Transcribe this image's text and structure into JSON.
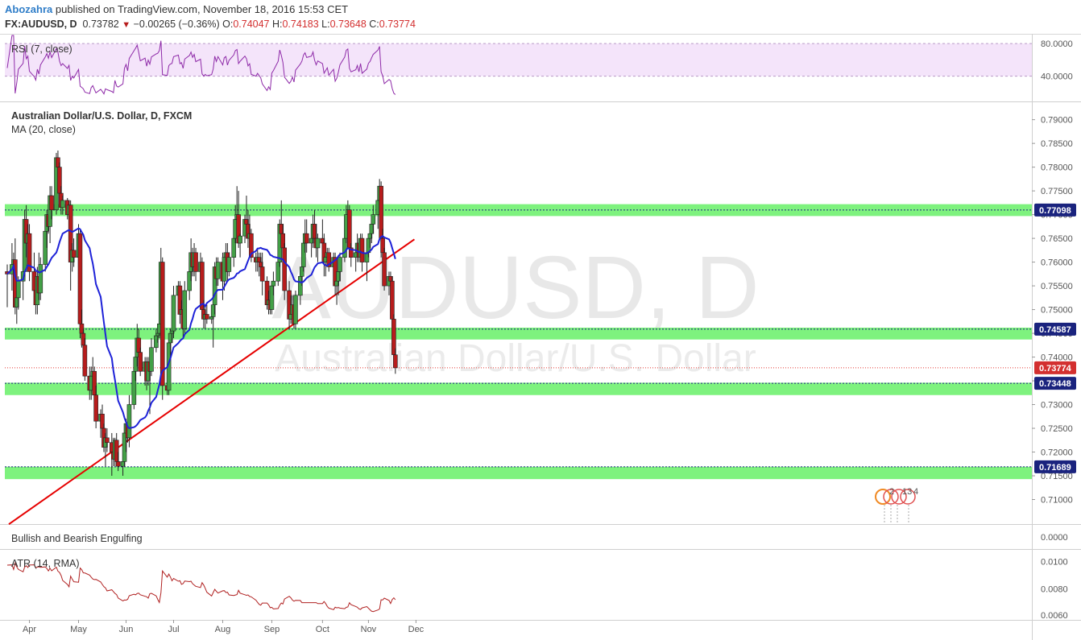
{
  "header": {
    "author": "Abozahra",
    "published": "published on TradingView.com, November 18, 2016 15:53 CET",
    "symbol": "FX:AUDUSD, D",
    "last": "0.73782",
    "change": "−0.00265 (−0.36%)",
    "o_label": "O:",
    "o_value": "0.74047",
    "h_label": "H:",
    "h_value": "0.74183",
    "l_label": "L:",
    "l_value": "0.73648",
    "c_label": "C:",
    "c_value": "0.73774"
  },
  "watermark": {
    "big": "AUDUSD, D",
    "small": "Australian Dollar/U.S. Dollar"
  },
  "panes": {
    "rsi_label": "RSI (7, close)",
    "main_title": "Australian Dollar/U.S. Dollar, D, FXCM",
    "ma_label": "MA (20, close)",
    "engulf_label": "Bullish and Bearish Engulfing",
    "atr_label": "ATR (14, RMA)"
  },
  "colors": {
    "bull": "#43a047",
    "bear": "#b71c1c",
    "ma": "#1e22d8",
    "trendline": "#e60000",
    "zone": "#7ef27e",
    "rsi_band": "#f4e4fa",
    "rsi_line": "#8e2aa8",
    "atr_line": "#b02020",
    "price_tag": "#1a237e",
    "current_tag": "#d32f2f"
  },
  "icons": [
    "calendar-event-icon"
  ],
  "event_markers": [
    "2",
    "13",
    "4"
  ],
  "chart_data": {
    "type": "candlestick",
    "title": "Australian Dollar/U.S. Dollar, D, FXCM",
    "x_tick_labels": [
      "Apr",
      "May",
      "Jun",
      "Jul",
      "Aug",
      "Sep",
      "Oct",
      "Nov",
      "Dec"
    ],
    "y_tick_labels": [
      "0.79000",
      "0.78500",
      "0.78000",
      "0.77500",
      "0.77000",
      "0.76500",
      "0.76000",
      "0.75500",
      "0.75000",
      "0.74500",
      "0.74000",
      "0.73500",
      "0.73000",
      "0.72500",
      "0.72000",
      "0.71500",
      "0.71000"
    ],
    "y_range": [
      0.705,
      0.7935
    ],
    "price_levels": [
      "0.77098",
      "0.74587",
      "0.73448",
      "0.71689"
    ],
    "current_price": "0.73774",
    "support_resistance_zones": [
      [
        0.7697,
        0.7722
      ],
      [
        0.7437,
        0.7462
      ],
      [
        0.732,
        0.7346
      ],
      [
        0.7143,
        0.7169
      ]
    ],
    "trendline": {
      "from": [
        "2016-03-19",
        0.7048
      ],
      "to": [
        "2016-11-30",
        0.7648
      ]
    },
    "candles_ohlc": [
      [
        "2016-03-18",
        0.758,
        0.7595,
        0.7505,
        0.7575
      ],
      [
        "2016-03-21",
        0.7575,
        0.764,
        0.754,
        0.7595
      ],
      [
        "2016-03-22",
        0.7595,
        0.762,
        0.757,
        0.7605
      ],
      [
        "2016-03-23",
        0.7605,
        0.765,
        0.749,
        0.7505
      ],
      [
        "2016-03-24",
        0.7505,
        0.753,
        0.747,
        0.7525
      ],
      [
        "2016-03-25",
        0.7525,
        0.757,
        0.75,
        0.756
      ],
      [
        "2016-03-28",
        0.756,
        0.759,
        0.752,
        0.758
      ],
      [
        "2016-03-29",
        0.758,
        0.771,
        0.757,
        0.769
      ],
      [
        "2016-03-30",
        0.769,
        0.772,
        0.761,
        0.764
      ],
      [
        "2016-03-31",
        0.764,
        0.768,
        0.76,
        0.766
      ],
      [
        "2016-04-01",
        0.766,
        0.768,
        0.756,
        0.758
      ],
      [
        "2016-04-04",
        0.758,
        0.762,
        0.752,
        0.754
      ],
      [
        "2016-04-05",
        0.754,
        0.756,
        0.749,
        0.751
      ],
      [
        "2016-04-06",
        0.751,
        0.759,
        0.749,
        0.757
      ],
      [
        "2016-04-07",
        0.757,
        0.762,
        0.752,
        0.7535
      ],
      [
        "2016-04-08",
        0.7535,
        0.761,
        0.752,
        0.7595
      ],
      [
        "2016-04-11",
        0.7595,
        0.768,
        0.758,
        0.7665
      ],
      [
        "2016-04-12",
        0.7665,
        0.771,
        0.763,
        0.77
      ],
      [
        "2016-04-13",
        0.77,
        0.773,
        0.766,
        0.7675
      ],
      [
        "2016-04-14",
        0.7675,
        0.776,
        0.764,
        0.774
      ],
      [
        "2016-04-15",
        0.774,
        0.776,
        0.769,
        0.771
      ],
      [
        "2016-04-18",
        0.771,
        0.783,
        0.77,
        0.782
      ],
      [
        "2016-04-19",
        0.782,
        0.7835,
        0.778,
        0.78
      ],
      [
        "2016-04-20",
        0.78,
        0.781,
        0.773,
        0.7745
      ],
      [
        "2016-04-21",
        0.7745,
        0.776,
        0.77,
        0.7715
      ],
      [
        "2016-04-22",
        0.7715,
        0.774,
        0.77,
        0.773
      ],
      [
        "2016-04-25",
        0.773,
        0.7735,
        0.769,
        0.77
      ],
      [
        "2016-04-26",
        0.77,
        0.773,
        0.767,
        0.772
      ],
      [
        "2016-04-27",
        0.772,
        0.773,
        0.754,
        0.76
      ],
      [
        "2016-04-28",
        0.76,
        0.764,
        0.758,
        0.7625
      ],
      [
        "2016-04-29",
        0.7625,
        0.765,
        0.759,
        0.761
      ],
      [
        "2016-05-02",
        0.761,
        0.768,
        0.76,
        0.766
      ],
      [
        "2016-05-03",
        0.766,
        0.767,
        0.744,
        0.747
      ],
      [
        "2016-05-04",
        0.747,
        0.75,
        0.742,
        0.745
      ],
      [
        "2016-05-05",
        0.745,
        0.746,
        0.74,
        0.7425
      ],
      [
        "2016-05-06",
        0.7425,
        0.744,
        0.735,
        0.736
      ],
      [
        "2016-05-09",
        0.736,
        0.738,
        0.731,
        0.733
      ],
      [
        "2016-05-10",
        0.733,
        0.738,
        0.731,
        0.736
      ],
      [
        "2016-05-11",
        0.736,
        0.74,
        0.733,
        0.737
      ],
      [
        "2016-05-12",
        0.737,
        0.738,
        0.73,
        0.732
      ],
      [
        "2016-05-13",
        0.732,
        0.734,
        0.725,
        0.7265
      ],
      [
        "2016-05-16",
        0.7265,
        0.729,
        0.723,
        0.728
      ],
      [
        "2016-05-17",
        0.728,
        0.73,
        0.724,
        0.725
      ],
      [
        "2016-05-18",
        0.725,
        0.726,
        0.72,
        0.721
      ],
      [
        "2016-05-19",
        0.721,
        0.724,
        0.717,
        0.723
      ],
      [
        "2016-05-20",
        0.723,
        0.725,
        0.72,
        0.722
      ],
      [
        "2016-05-23",
        0.722,
        0.724,
        0.715,
        0.72
      ],
      [
        "2016-05-24",
        0.72,
        0.723,
        0.717,
        0.7185
      ],
      [
        "2016-05-25",
        0.7185,
        0.723,
        0.717,
        0.7225
      ],
      [
        "2016-05-26",
        0.7225,
        0.724,
        0.7175,
        0.718
      ],
      [
        "2016-05-27",
        0.718,
        0.72,
        0.716,
        0.717
      ],
      [
        "2016-05-30",
        0.717,
        0.7195,
        0.715,
        0.718
      ],
      [
        "2016-05-31",
        0.718,
        0.725,
        0.717,
        0.724
      ],
      [
        "2016-06-01",
        0.724,
        0.727,
        0.72,
        0.726
      ],
      [
        "2016-06-02",
        0.726,
        0.73,
        0.722,
        0.723
      ],
      [
        "2016-06-03",
        0.723,
        0.732,
        0.721,
        0.73
      ],
      [
        "2016-06-06",
        0.73,
        0.738,
        0.729,
        0.737
      ],
      [
        "2016-06-07",
        0.737,
        0.742,
        0.735,
        0.74
      ],
      [
        "2016-06-08",
        0.74,
        0.747,
        0.738,
        0.744
      ],
      [
        "2016-06-09",
        0.744,
        0.746,
        0.738,
        0.741
      ],
      [
        "2016-06-10",
        0.741,
        0.742,
        0.736,
        0.737
      ],
      [
        "2016-06-13",
        0.737,
        0.74,
        0.734,
        0.739
      ],
      [
        "2016-06-14",
        0.739,
        0.74,
        0.733,
        0.735
      ],
      [
        "2016-06-15",
        0.735,
        0.74,
        0.734,
        0.739
      ],
      [
        "2016-06-16",
        0.739,
        0.74,
        0.728,
        0.737
      ],
      [
        "2016-06-17",
        0.737,
        0.744,
        0.736,
        0.742
      ],
      [
        "2016-06-20",
        0.742,
        0.746,
        0.741,
        0.7445
      ],
      [
        "2016-06-21",
        0.7445,
        0.747,
        0.743,
        0.745
      ],
      [
        "2016-06-22",
        0.745,
        0.748,
        0.744,
        0.747
      ],
      [
        "2016-06-23",
        0.747,
        0.763,
        0.746,
        0.76
      ],
      [
        "2016-06-24",
        0.76,
        0.761,
        0.731,
        0.734
      ],
      [
        "2016-06-27",
        0.734,
        0.735,
        0.732,
        0.733
      ],
      [
        "2016-06-28",
        0.733,
        0.744,
        0.732,
        0.743
      ],
      [
        "2016-06-29",
        0.743,
        0.746,
        0.74,
        0.745
      ],
      [
        "2016-06-30",
        0.745,
        0.748,
        0.743,
        0.7455
      ],
      [
        "2016-07-01",
        0.7455,
        0.755,
        0.744,
        0.753
      ],
      [
        "2016-07-04",
        0.753,
        0.756,
        0.75,
        0.755
      ],
      [
        "2016-07-05",
        0.755,
        0.756,
        0.747,
        0.749
      ],
      [
        "2016-07-06",
        0.749,
        0.752,
        0.747,
        0.75
      ],
      [
        "2016-07-07",
        0.75,
        0.753,
        0.744,
        0.746
      ],
      [
        "2016-07-08",
        0.746,
        0.756,
        0.745,
        0.754
      ],
      [
        "2016-07-11",
        0.754,
        0.76,
        0.752,
        0.758
      ],
      [
        "2016-07-12",
        0.758,
        0.765,
        0.756,
        0.762
      ],
      [
        "2016-07-13",
        0.762,
        0.763,
        0.757,
        0.759
      ],
      [
        "2016-07-14",
        0.759,
        0.764,
        0.757,
        0.762
      ],
      [
        "2016-07-15",
        0.762,
        0.763,
        0.756,
        0.758
      ],
      [
        "2016-07-18",
        0.758,
        0.762,
        0.755,
        0.76
      ],
      [
        "2016-07-19",
        0.76,
        0.761,
        0.748,
        0.75
      ],
      [
        "2016-07-20",
        0.75,
        0.752,
        0.746,
        0.748
      ],
      [
        "2016-07-21",
        0.748,
        0.751,
        0.746,
        0.749
      ],
      [
        "2016-07-22",
        0.749,
        0.751,
        0.747,
        0.748
      ],
      [
        "2016-07-25",
        0.748,
        0.751,
        0.747,
        0.7485
      ],
      [
        "2016-07-26",
        0.7485,
        0.753,
        0.742,
        0.751
      ],
      [
        "2016-07-27",
        0.751,
        0.76,
        0.749,
        0.759
      ],
      [
        "2016-07-28",
        0.759,
        0.761,
        0.755,
        0.7565
      ],
      [
        "2016-07-29",
        0.7565,
        0.761,
        0.755,
        0.76
      ],
      [
        "2016-08-01",
        0.76,
        0.762,
        0.752,
        0.756
      ],
      [
        "2016-08-02",
        0.756,
        0.762,
        0.754,
        0.761
      ],
      [
        "2016-08-03",
        0.761,
        0.764,
        0.758,
        0.762
      ],
      [
        "2016-08-04",
        0.762,
        0.764,
        0.756,
        0.758
      ],
      [
        "2016-08-05",
        0.758,
        0.762,
        0.757,
        0.761
      ],
      [
        "2016-08-08",
        0.761,
        0.766,
        0.759,
        0.765
      ],
      [
        "2016-08-09",
        0.765,
        0.772,
        0.764,
        0.769
      ],
      [
        "2016-08-10",
        0.769,
        0.776,
        0.768,
        0.77
      ],
      [
        "2016-08-11",
        0.77,
        0.775,
        0.763,
        0.764
      ],
      [
        "2016-08-12",
        0.764,
        0.766,
        0.761,
        0.7655
      ],
      [
        "2016-08-15",
        0.7655,
        0.77,
        0.764,
        0.769
      ],
      [
        "2016-08-16",
        0.769,
        0.774,
        0.767,
        0.768
      ],
      [
        "2016-08-17",
        0.768,
        0.771,
        0.763,
        0.765
      ],
      [
        "2016-08-18",
        0.765,
        0.77,
        0.764,
        0.766
      ],
      [
        "2016-08-19",
        0.766,
        0.767,
        0.76,
        0.761
      ],
      [
        "2016-08-22",
        0.761,
        0.762,
        0.758,
        0.76
      ],
      [
        "2016-08-23",
        0.76,
        0.763,
        0.758,
        0.761
      ],
      [
        "2016-08-24",
        0.761,
        0.762,
        0.757,
        0.76
      ],
      [
        "2016-08-25",
        0.76,
        0.762,
        0.756,
        0.759
      ],
      [
        "2016-08-26",
        0.759,
        0.762,
        0.753,
        0.756
      ],
      [
        "2016-08-29",
        0.756,
        0.757,
        0.75,
        0.751
      ],
      [
        "2016-08-30",
        0.751,
        0.754,
        0.749,
        0.752
      ],
      [
        "2016-08-31",
        0.752,
        0.753,
        0.749,
        0.75
      ],
      [
        "2016-09-01",
        0.75,
        0.756,
        0.749,
        0.755
      ],
      [
        "2016-09-02",
        0.755,
        0.758,
        0.753,
        0.756
      ],
      [
        "2016-09-05",
        0.756,
        0.762,
        0.755,
        0.76
      ],
      [
        "2016-09-06",
        0.76,
        0.769,
        0.759,
        0.768
      ],
      [
        "2016-09-07",
        0.768,
        0.773,
        0.764,
        0.766
      ],
      [
        "2016-09-08",
        0.766,
        0.768,
        0.762,
        0.763
      ],
      [
        "2016-09-09",
        0.763,
        0.764,
        0.752,
        0.754
      ],
      [
        "2016-09-12",
        0.754,
        0.756,
        0.746,
        0.748
      ],
      [
        "2016-09-13",
        0.748,
        0.753,
        0.747,
        0.749
      ],
      [
        "2016-09-14",
        0.749,
        0.753,
        0.748,
        0.751
      ],
      [
        "2016-09-15",
        0.751,
        0.752,
        0.746,
        0.747
      ],
      [
        "2016-09-16",
        0.747,
        0.754,
        0.746,
        0.753
      ],
      [
        "2016-09-19",
        0.753,
        0.758,
        0.751,
        0.757
      ],
      [
        "2016-09-20",
        0.757,
        0.76,
        0.755,
        0.759
      ],
      [
        "2016-09-21",
        0.759,
        0.765,
        0.758,
        0.764
      ],
      [
        "2016-09-22",
        0.764,
        0.769,
        0.762,
        0.766
      ],
      [
        "2016-09-23",
        0.766,
        0.769,
        0.762,
        0.764
      ],
      [
        "2016-09-26",
        0.764,
        0.768,
        0.761,
        0.765
      ],
      [
        "2016-09-27",
        0.765,
        0.77,
        0.763,
        0.768
      ],
      [
        "2016-09-28",
        0.768,
        0.771,
        0.764,
        0.765
      ],
      [
        "2016-09-29",
        0.765,
        0.768,
        0.761,
        0.763
      ],
      [
        "2016-09-30",
        0.763,
        0.766,
        0.76,
        0.765
      ],
      [
        "2016-10-03",
        0.765,
        0.769,
        0.762,
        0.764
      ],
      [
        "2016-10-04",
        0.764,
        0.766,
        0.757,
        0.76
      ],
      [
        "2016-10-05",
        0.76,
        0.762,
        0.757,
        0.761
      ],
      [
        "2016-10-06",
        0.761,
        0.763,
        0.759,
        0.762
      ],
      [
        "2016-10-07",
        0.762,
        0.763,
        0.758,
        0.759
      ],
      [
        "2016-10-10",
        0.759,
        0.762,
        0.757,
        0.761
      ],
      [
        "2016-10-11",
        0.761,
        0.762,
        0.753,
        0.755
      ],
      [
        "2016-10-12",
        0.755,
        0.757,
        0.751,
        0.756
      ],
      [
        "2016-10-13",
        0.756,
        0.76,
        0.753,
        0.758
      ],
      [
        "2016-10-14",
        0.758,
        0.762,
        0.756,
        0.761
      ],
      [
        "2016-10-17",
        0.761,
        0.766,
        0.76,
        0.765
      ],
      [
        "2016-10-18",
        0.765,
        0.772,
        0.764,
        0.77
      ],
      [
        "2016-10-19",
        0.77,
        0.773,
        0.766,
        0.771
      ],
      [
        "2016-10-20",
        0.771,
        0.772,
        0.761,
        0.763
      ],
      [
        "2016-10-21",
        0.763,
        0.764,
        0.759,
        0.761
      ],
      [
        "2016-10-24",
        0.761,
        0.763,
        0.758,
        0.762
      ],
      [
        "2016-10-25",
        0.762,
        0.766,
        0.76,
        0.764
      ],
      [
        "2016-10-26",
        0.764,
        0.765,
        0.76,
        0.761
      ],
      [
        "2016-10-27",
        0.761,
        0.766,
        0.76,
        0.765
      ],
      [
        "2016-10-28",
        0.765,
        0.766,
        0.758,
        0.76
      ],
      [
        "2016-10-31",
        0.76,
        0.764,
        0.756,
        0.762
      ],
      [
        "2016-11-01",
        0.762,
        0.766,
        0.761,
        0.765
      ],
      [
        "2016-11-02",
        0.765,
        0.768,
        0.763,
        0.766
      ],
      [
        "2016-11-03",
        0.766,
        0.769,
        0.764,
        0.768
      ],
      [
        "2016-11-04",
        0.768,
        0.772,
        0.766,
        0.77
      ],
      [
        "2016-11-07",
        0.77,
        0.775,
        0.767,
        0.773
      ],
      [
        "2016-11-08",
        0.773,
        0.7775,
        0.77,
        0.776
      ],
      [
        "2016-11-09",
        0.776,
        0.777,
        0.761,
        0.765
      ],
      [
        "2016-11-10",
        0.765,
        0.767,
        0.76,
        0.762
      ],
      [
        "2016-11-11",
        0.762,
        0.763,
        0.754,
        0.755
      ],
      [
        "2016-11-14",
        0.755,
        0.758,
        0.753,
        0.757
      ],
      [
        "2016-11-15",
        0.757,
        0.758,
        0.754,
        0.756
      ],
      [
        "2016-11-16",
        0.756,
        0.757,
        0.746,
        0.748
      ],
      [
        "2016-11-17",
        0.748,
        0.749,
        0.74,
        0.7405
      ],
      [
        "2016-11-18",
        0.74047,
        0.74183,
        0.73648,
        0.73774
      ]
    ],
    "rsi": {
      "label": "RSI (7, close)",
      "y_tick_labels": [
        "80.0000",
        "40.0000"
      ],
      "ylim": [
        10,
        90
      ]
    },
    "atr": {
      "label": "ATR (14, RMA)",
      "y_tick_labels": [
        "0.0100",
        "0.0080",
        "0.0060"
      ],
      "ylim": [
        0.0058,
        0.0108
      ]
    },
    "engulfing": {
      "label": "Bullish and Bearish Engulfing",
      "y_tick_labels": [
        "0.0000"
      ]
    }
  }
}
